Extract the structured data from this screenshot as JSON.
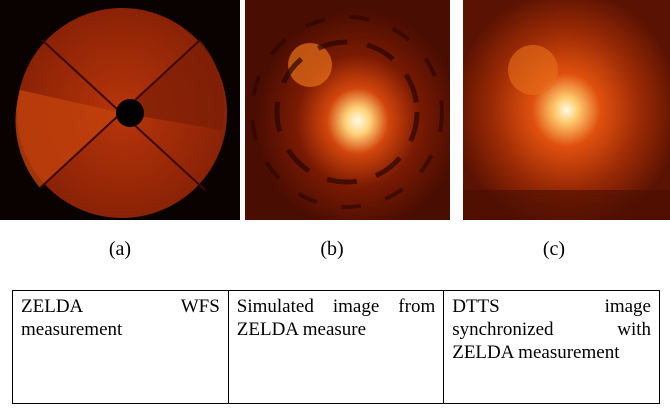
{
  "panels": [
    {
      "label": "(a)"
    },
    {
      "label": "(b)"
    },
    {
      "label": "(c)"
    }
  ],
  "table": {
    "rows": [
      [
        "ZELDA WFS measurement",
        "Simulated image from ZELDA measure",
        "DTTS image synchronized with ZELDA measurement"
      ]
    ]
  }
}
